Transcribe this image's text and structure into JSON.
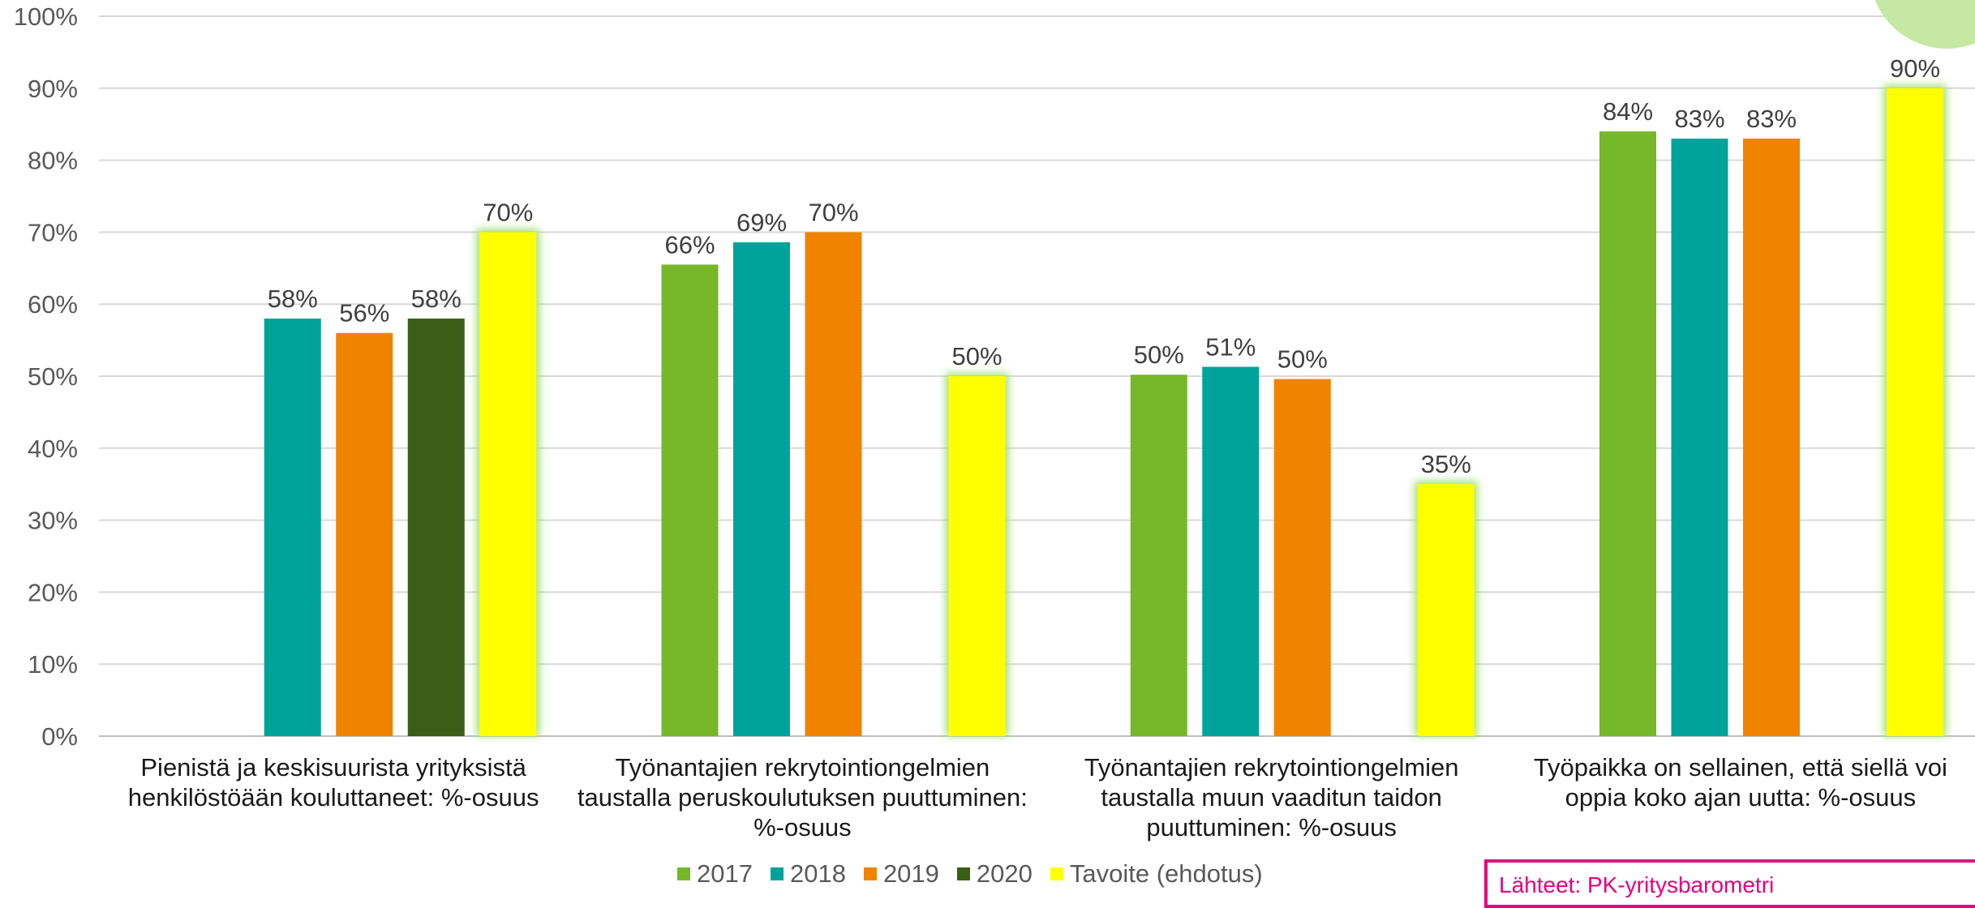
{
  "chart_data": {
    "type": "bar",
    "title": "",
    "xlabel": "",
    "ylabel": "",
    "ylim": [
      0,
      100
    ],
    "y_ticks": [
      "0%",
      "10%",
      "20%",
      "30%",
      "40%",
      "50%",
      "60%",
      "70%",
      "80%",
      "90%",
      "100%"
    ],
    "grid": true,
    "legend_position": "bottom",
    "categories": [
      [
        "Pienistä ja keskisuurista yrityksistä",
        "henkilöstöään kouluttaneet: %-osuus"
      ],
      [
        "Työnantajien rekrytointiongelmien",
        "taustalla peruskoulutuksen puuttuminen:",
        "%-osuus"
      ],
      [
        "Työnantajien rekrytointiongelmien",
        "taustalla muun vaaditun taidon",
        "puuttuminen: %-osuus"
      ],
      [
        "Työpaikka on sellainen, että siellä voi",
        "oppia koko ajan uutta: %-osuus"
      ]
    ],
    "series": [
      {
        "name": "2017",
        "color": "#76b82a",
        "values": [
          null,
          65.5,
          50.2,
          84
        ],
        "labels": [
          "",
          "66%",
          "50%",
          "84%"
        ]
      },
      {
        "name": "2018",
        "color": "#00a39a",
        "values": [
          58,
          68.6,
          51.3,
          83
        ],
        "labels": [
          "58%",
          "69%",
          "51%",
          "83%"
        ]
      },
      {
        "name": "2019",
        "color": "#f08300",
        "values": [
          56,
          70,
          49.6,
          83
        ],
        "labels": [
          "56%",
          "70%",
          "50%",
          "83%"
        ]
      },
      {
        "name": "2020",
        "color": "#3b5e17",
        "values": [
          58,
          null,
          null,
          null
        ],
        "labels": [
          "58%",
          "",
          "",
          ""
        ]
      },
      {
        "name": "Tavoite (ehdotus)",
        "color": "#ffff00",
        "glow": "#a6e07a",
        "values": [
          70,
          50,
          35,
          90
        ],
        "labels": [
          "70%",
          "50%",
          "35%",
          "90%"
        ]
      }
    ]
  },
  "source_note": "Lähteet: PK-yritysbarometri"
}
